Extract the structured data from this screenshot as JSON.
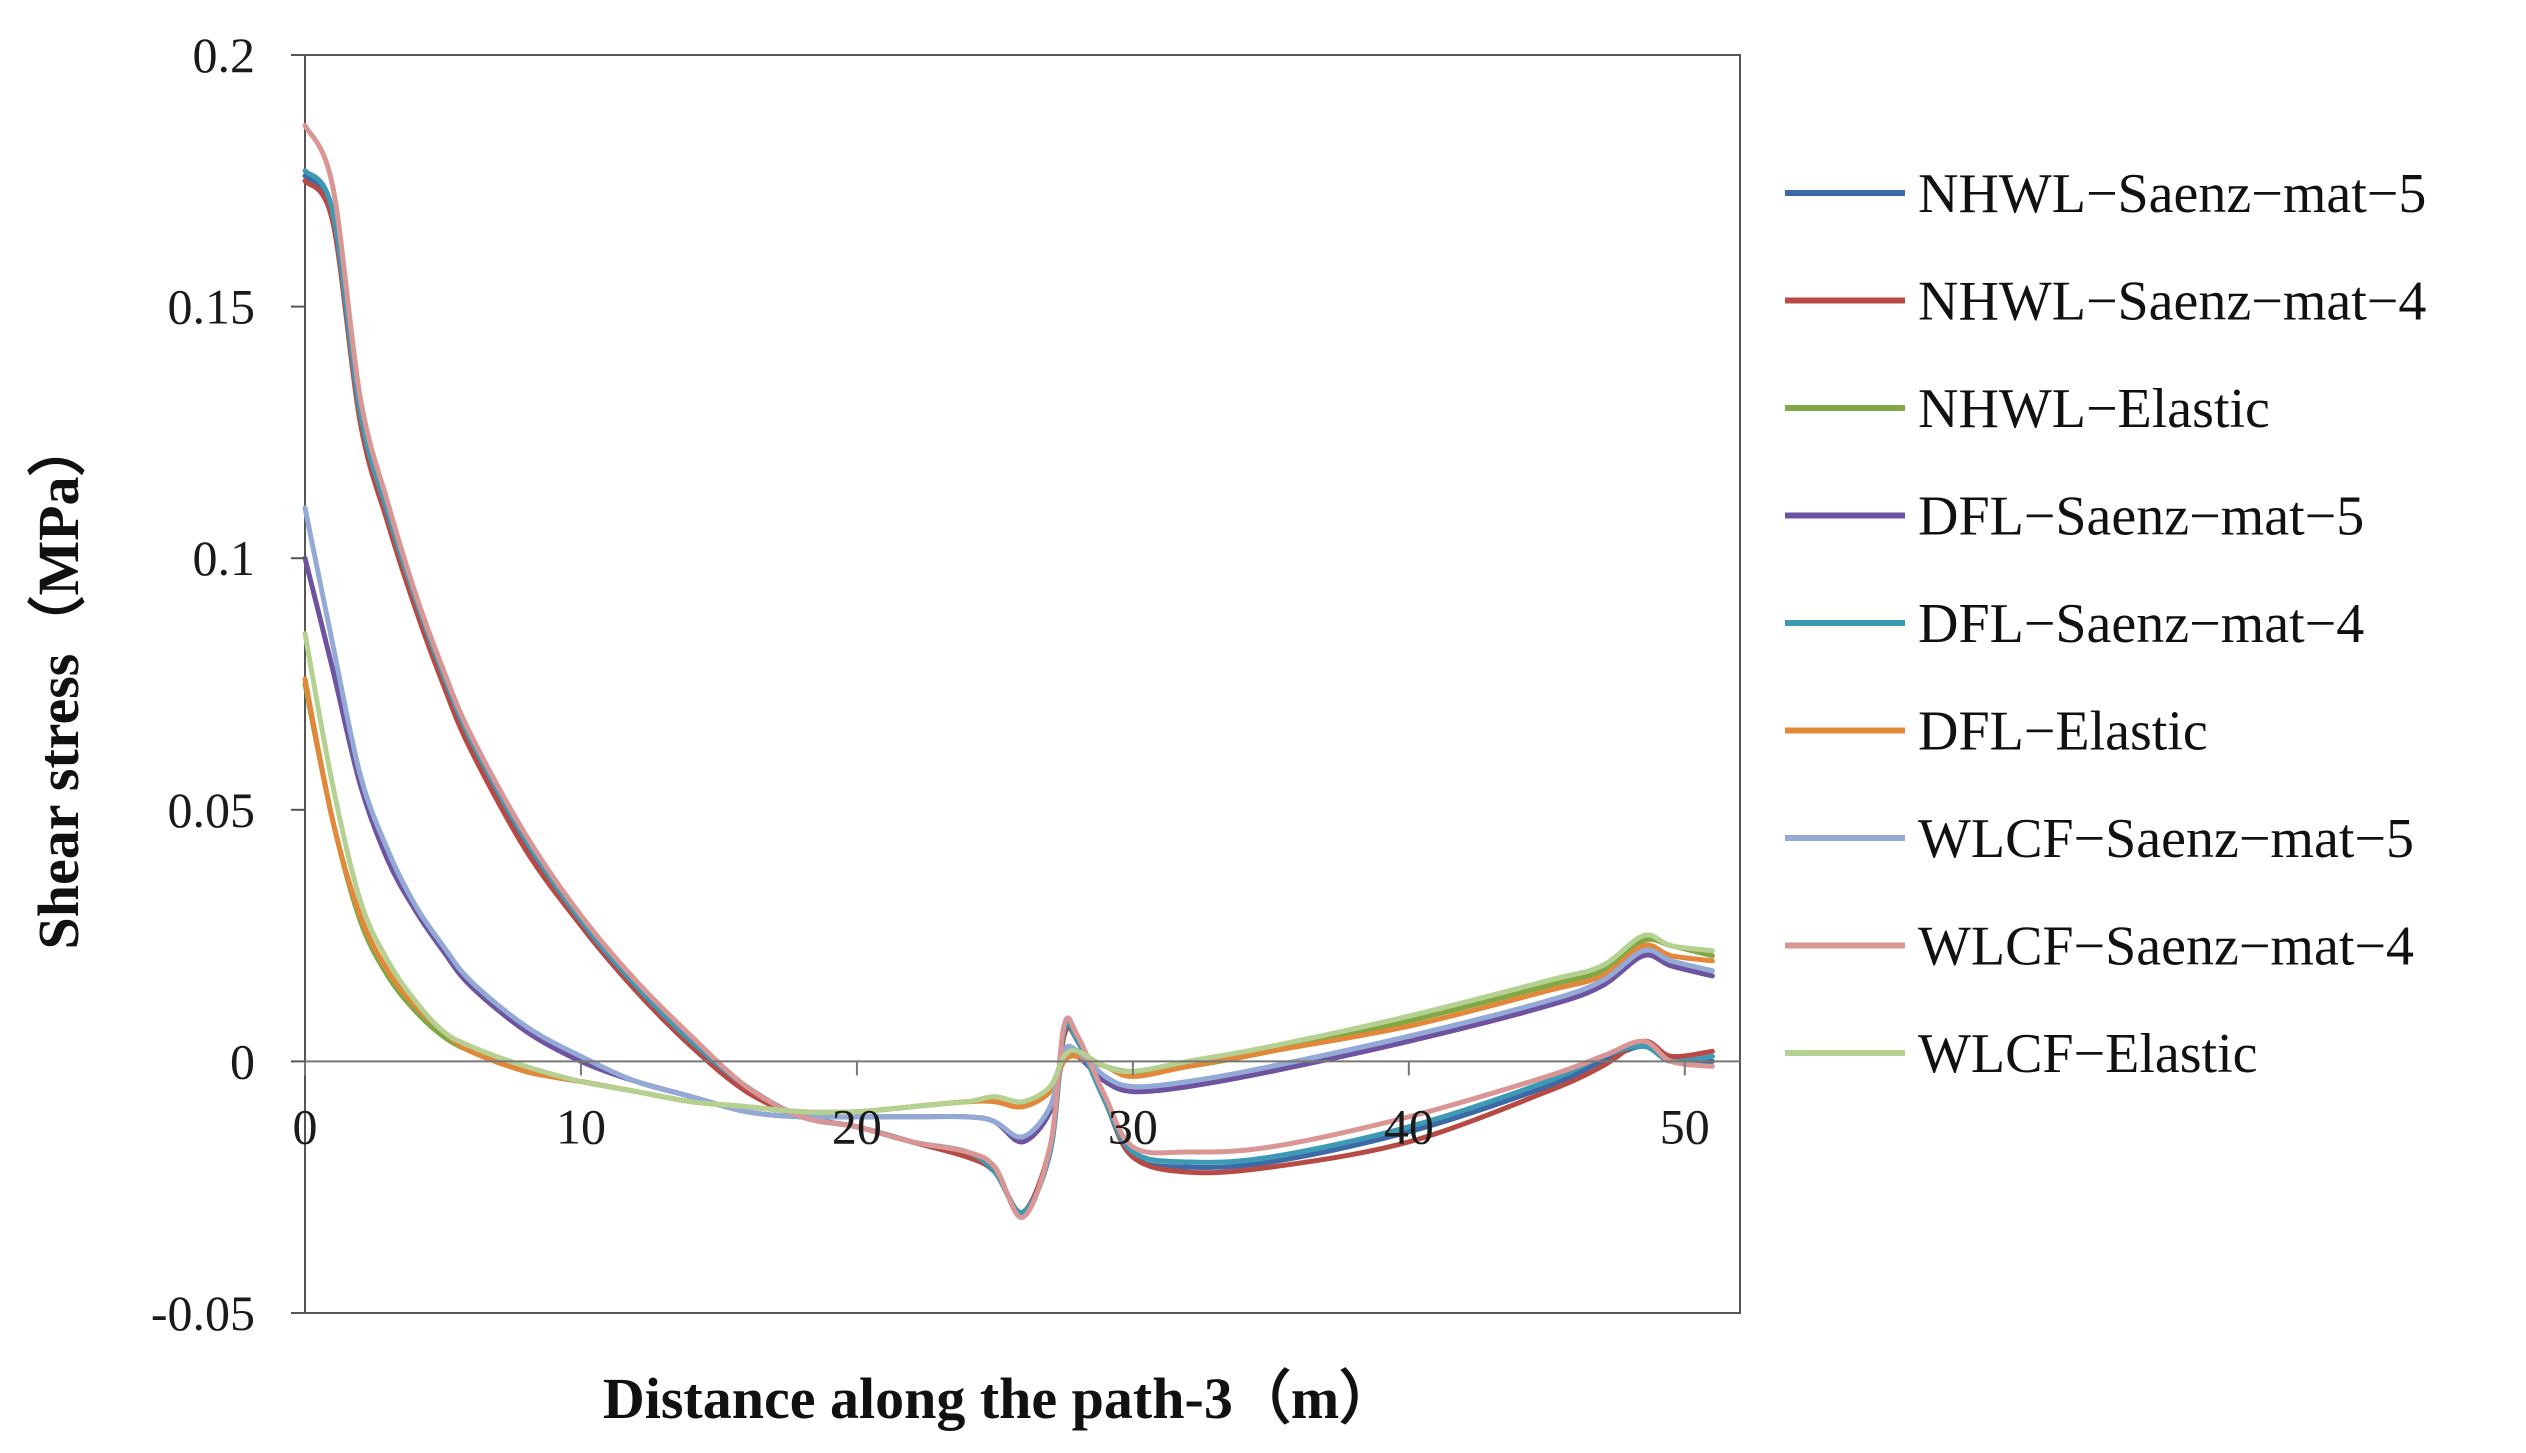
{
  "chart_data": {
    "type": "line",
    "title": "",
    "xlabel": "Distance along the path-3（m）",
    "ylabel": "Shear stress（MPa）",
    "xlim": [
      0,
      52
    ],
    "ylim": [
      -0.05,
      0.2
    ],
    "xticks": [
      0,
      10,
      20,
      30,
      40,
      50
    ],
    "xtick_labels": [
      "0",
      "10",
      "20",
      "30",
      "40",
      "50"
    ],
    "yticks": [
      -0.05,
      0,
      0.05,
      0.1,
      0.15,
      0.2
    ],
    "ytick_labels": [
      "-0.05",
      "0",
      "0.05",
      "0.1",
      "0.15",
      "0.2"
    ],
    "grid": false,
    "legend_position": "right",
    "x": [
      0,
      1,
      2,
      3,
      4,
      5,
      6,
      8,
      10,
      12,
      14,
      16,
      18,
      20,
      22,
      24,
      25,
      26,
      27,
      27.5,
      28,
      29,
      30,
      32,
      35,
      40,
      45,
      47,
      48.5,
      49.5,
      51
    ],
    "series": [
      {
        "name": "NHWL−Saenz−mat−5",
        "color": "#3d6aa6",
        "values": [
          0.176,
          0.168,
          0.128,
          0.108,
          0.091,
          0.076,
          0.063,
          0.043,
          0.027,
          0.014,
          0.003,
          -0.006,
          -0.011,
          -0.013,
          -0.016,
          -0.019,
          -0.022,
          -0.03,
          -0.018,
          0.005,
          0.004,
          -0.008,
          -0.019,
          -0.021,
          -0.02,
          -0.014,
          -0.005,
          0.0,
          0.003,
          0.0,
          0.0
        ]
      },
      {
        "name": "NHWL−Saenz−mat−4",
        "color": "#b84a45",
        "values": [
          0.175,
          0.167,
          0.127,
          0.107,
          0.09,
          0.075,
          0.062,
          0.042,
          0.027,
          0.014,
          0.003,
          -0.006,
          -0.011,
          -0.013,
          -0.016,
          -0.019,
          -0.022,
          -0.03,
          -0.017,
          0.005,
          0.004,
          -0.008,
          -0.019,
          -0.022,
          -0.021,
          -0.016,
          -0.006,
          -0.001,
          0.004,
          0.001,
          0.002
        ]
      },
      {
        "name": "NHWL−Elastic",
        "color": "#82a845",
        "values": [
          0.075,
          0.048,
          0.028,
          0.017,
          0.01,
          0.005,
          0.002,
          -0.002,
          -0.004,
          -0.006,
          -0.008,
          -0.009,
          -0.01,
          -0.01,
          -0.009,
          -0.008,
          -0.008,
          -0.009,
          -0.006,
          0.0,
          0.001,
          -0.001,
          -0.002,
          -0.001,
          0.002,
          0.008,
          0.015,
          0.018,
          0.024,
          0.023,
          0.021
        ]
      },
      {
        "name": "DFL−Saenz−mat−5",
        "color": "#6e54a0",
        "values": [
          0.1,
          0.078,
          0.055,
          0.04,
          0.03,
          0.022,
          0.015,
          0.006,
          0.0,
          -0.004,
          -0.007,
          -0.01,
          -0.011,
          -0.011,
          -0.011,
          -0.011,
          -0.012,
          -0.016,
          -0.01,
          0.001,
          0.001,
          -0.004,
          -0.006,
          -0.005,
          -0.002,
          0.004,
          0.011,
          0.015,
          0.021,
          0.019,
          0.017
        ]
      },
      {
        "name": "DFL−Saenz−mat−4",
        "color": "#3d9ab5",
        "values": [
          0.177,
          0.169,
          0.129,
          0.109,
          0.092,
          0.077,
          0.064,
          0.044,
          0.028,
          0.015,
          0.004,
          -0.005,
          -0.011,
          -0.013,
          -0.016,
          -0.018,
          -0.022,
          -0.03,
          -0.018,
          0.006,
          0.004,
          -0.008,
          -0.018,
          -0.02,
          -0.019,
          -0.013,
          -0.004,
          0.001,
          0.003,
          0.0,
          0.001
        ]
      },
      {
        "name": "DFL−Elastic",
        "color": "#e3883a",
        "values": [
          0.076,
          0.048,
          0.029,
          0.018,
          0.011,
          0.006,
          0.002,
          -0.002,
          -0.004,
          -0.006,
          -0.008,
          -0.009,
          -0.01,
          -0.01,
          -0.009,
          -0.008,
          -0.008,
          -0.009,
          -0.006,
          0.0,
          0.001,
          -0.001,
          -0.003,
          -0.001,
          0.002,
          0.007,
          0.014,
          0.017,
          0.023,
          0.021,
          0.02
        ]
      },
      {
        "name": "WLCF−Saenz−mat−5",
        "color": "#93a9d6",
        "values": [
          0.11,
          0.083,
          0.057,
          0.042,
          0.031,
          0.023,
          0.016,
          0.007,
          0.001,
          -0.004,
          -0.007,
          -0.01,
          -0.011,
          -0.011,
          -0.011,
          -0.011,
          -0.012,
          -0.015,
          -0.009,
          0.002,
          0.002,
          -0.003,
          -0.005,
          -0.004,
          -0.001,
          0.005,
          0.012,
          0.016,
          0.022,
          0.02,
          0.018
        ]
      },
      {
        "name": "WLCF−Saenz−mat−4",
        "color": "#d99694",
        "values": [
          0.186,
          0.174,
          0.132,
          0.111,
          0.093,
          0.078,
          0.065,
          0.045,
          0.029,
          0.016,
          0.005,
          -0.005,
          -0.011,
          -0.013,
          -0.016,
          -0.018,
          -0.021,
          -0.031,
          -0.017,
          0.007,
          0.005,
          -0.007,
          -0.017,
          -0.018,
          -0.017,
          -0.011,
          -0.003,
          0.001,
          0.004,
          0.0,
          -0.001
        ]
      },
      {
        "name": "WLCF−Elastic",
        "color": "#b5d191",
        "values": [
          0.085,
          0.055,
          0.032,
          0.02,
          0.012,
          0.006,
          0.003,
          -0.001,
          -0.004,
          -0.006,
          -0.008,
          -0.009,
          -0.01,
          -0.01,
          -0.009,
          -0.008,
          -0.007,
          -0.008,
          -0.005,
          0.001,
          0.002,
          -0.001,
          -0.002,
          0.0,
          0.003,
          0.009,
          0.016,
          0.019,
          0.025,
          0.023,
          0.022
        ]
      }
    ]
  }
}
